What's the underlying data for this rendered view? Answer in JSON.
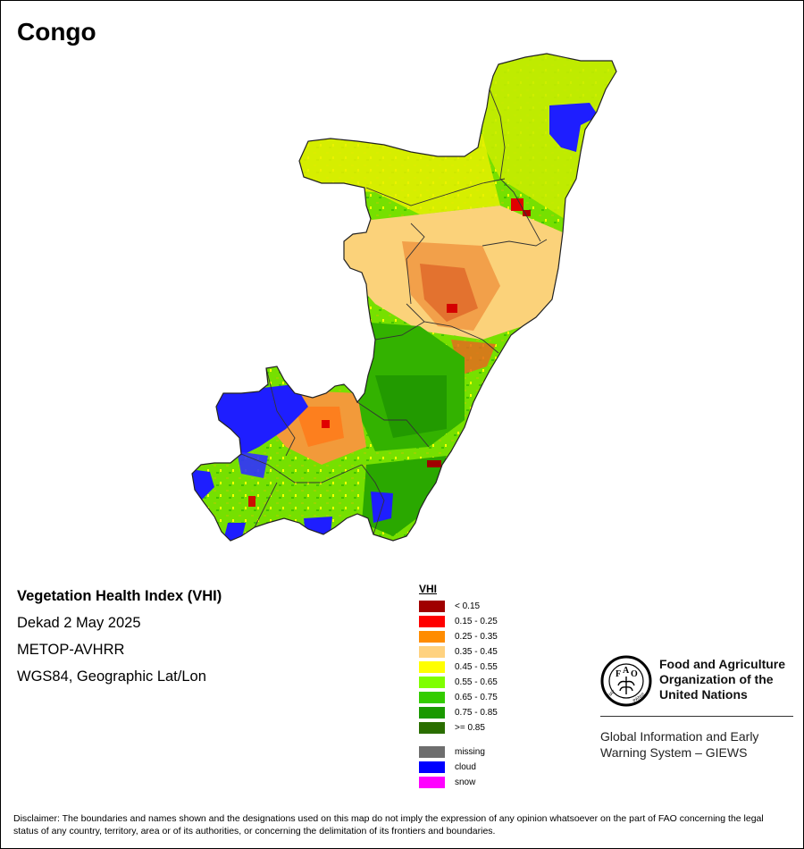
{
  "title": "Congo",
  "info": {
    "product": "Vegetation Health Index (VHI)",
    "period": "Dekad 2 May 2025",
    "sensor": "METOP-AVHRR",
    "projection": "WGS84, Geographic Lat/Lon"
  },
  "legend": {
    "title": "VHI",
    "classes": [
      {
        "label": "< 0.15",
        "color": "#a00000"
      },
      {
        "label": "0.15 - 0.25",
        "color": "#ff0000"
      },
      {
        "label": "0.25 - 0.35",
        "color": "#ff8c00"
      },
      {
        "label": "0.35 - 0.45",
        "color": "#ffd27f"
      },
      {
        "label": "0.45 - 0.55",
        "color": "#ffff00"
      },
      {
        "label": "0.55 - 0.65",
        "color": "#7fff00"
      },
      {
        "label": "0.65 - 0.75",
        "color": "#33cc00"
      },
      {
        "label": "0.75 - 0.85",
        "color": "#1a9900"
      },
      {
        "label": ">= 0.85",
        "color": "#2a6e00"
      }
    ],
    "special": [
      {
        "label": "missing",
        "color": "#6e6e6e"
      },
      {
        "label": "cloud",
        "color": "#0000ff"
      },
      {
        "label": "snow",
        "color": "#ff00ff"
      }
    ]
  },
  "org": {
    "line1": "Food and Agriculture",
    "line2": "Organization of the",
    "line3": "United Nations",
    "giews_line1": "Global Information and Early",
    "giews_line2": "Warning System – GIEWS",
    "logo_icon": "fao-logo"
  },
  "disclaimer": "Disclaimer: The boundaries and names shown and the designations used on this map do not imply the expression of any opinion whatsoever on the part of FAO concerning the legal status of any country, territory, area or of its authorities, or concerning the delimitation of its frontiers and boundaries."
}
